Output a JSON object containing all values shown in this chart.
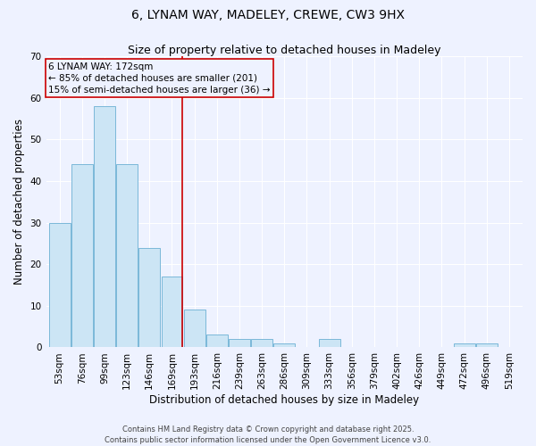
{
  "title1": "6, LYNAM WAY, MADELEY, CREWE, CW3 9HX",
  "title2": "Size of property relative to detached houses in Madeley",
  "xlabel": "Distribution of detached houses by size in Madeley",
  "ylabel": "Number of detached properties",
  "categories": [
    "53sqm",
    "76sqm",
    "99sqm",
    "123sqm",
    "146sqm",
    "169sqm",
    "193sqm",
    "216sqm",
    "239sqm",
    "263sqm",
    "286sqm",
    "309sqm",
    "333sqm",
    "356sqm",
    "379sqm",
    "402sqm",
    "426sqm",
    "449sqm",
    "472sqm",
    "496sqm",
    "519sqm"
  ],
  "values": [
    30,
    44,
    58,
    44,
    24,
    17,
    9,
    3,
    2,
    2,
    1,
    0,
    2,
    0,
    0,
    0,
    0,
    0,
    1,
    1,
    0
  ],
  "bar_color": "#cce5f5",
  "bar_edge_color": "#7ab8d9",
  "vline_x_index": 5,
  "vline_color": "#cc0000",
  "annotation_line1": "6 LYNAM WAY: 172sqm",
  "annotation_line2": "← 85% of detached houses are smaller (201)",
  "annotation_line3": "15% of semi-detached houses are larger (36) →",
  "annotation_box_color": "#cc0000",
  "ylim": [
    0,
    70
  ],
  "yticks": [
    0,
    10,
    20,
    30,
    40,
    50,
    60,
    70
  ],
  "background_color": "#eef2ff",
  "grid_color": "#ffffff",
  "footer": "Contains HM Land Registry data © Crown copyright and database right 2025.\nContains public sector information licensed under the Open Government Licence v3.0.",
  "title_fontsize": 10,
  "subtitle_fontsize": 9,
  "axis_label_fontsize": 8.5,
  "tick_fontsize": 7.5,
  "footer_fontsize": 6,
  "annot_fontsize": 7.5
}
